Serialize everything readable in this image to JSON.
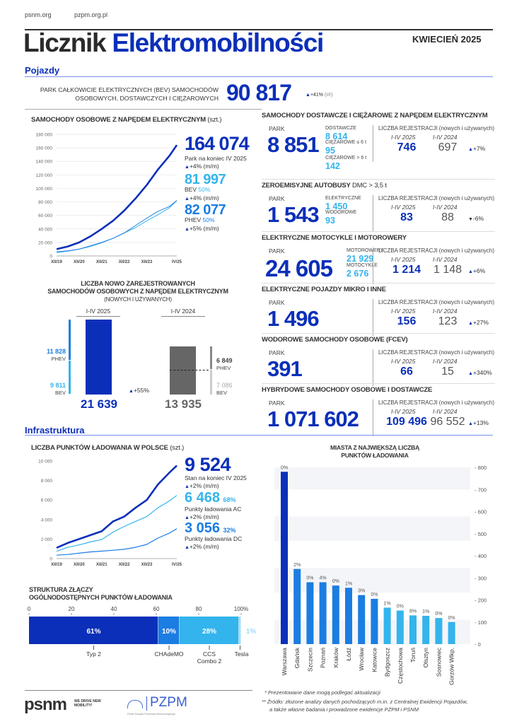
{
  "header": {
    "link1": "psnm.org",
    "link2": "pzpm.org.pl",
    "title_dark": "Licznik",
    "title_blue": "Elektromobilności",
    "date": "KWIECIEŃ 2025"
  },
  "sections": {
    "vehicles": "Pojazdy",
    "infrastructure": "Infrastruktura"
  },
  "bev_park": {
    "label1": "PARK CAŁKOWICIE ELEKTRYCZNYCH (BEV) SAMOCHODÓW",
    "label2": "OSOBOWYCH, DOSTAWCZYCH I CIĘŻAROWYCH",
    "value": "90 817",
    "change": "+41%",
    "change_unit": "(r/r)"
  },
  "cars_chart": {
    "title": "SAMOCHODY OSOBOWE Z NAPĘDEM ELEKTRYCZNYM",
    "unit": "(szt.)",
    "total": {
      "value": "164 074",
      "label": "Park na koniec IV 2025",
      "change": "+4% (m/m)"
    },
    "bev": {
      "value": "81 997",
      "label": "BEV",
      "share": "50%",
      "change": "+4% (m/m)"
    },
    "phev": {
      "value": "82 077",
      "label": "PHEV",
      "share": "50%",
      "change": "+5% (m/m)"
    }
  },
  "registrations": {
    "title1": "LICZBA NOWO ZAREJESTROWANYCH",
    "title2": "SAMOCHODÓW OSOBOWYCH Z NAPĘDEM ELEKTRYCZNYM",
    "title3": "(NOWYCH I UŻYWANYCH)",
    "y2025": {
      "label": "I-IV 2025",
      "total": "21 639",
      "phev": "11 828",
      "bev": "9 811"
    },
    "y2024": {
      "label": "I-IV 2024",
      "total": "13 935",
      "phev": "6 849",
      "bev": "7 086"
    },
    "phev_label": "PHEV",
    "bev_label": "BEV",
    "change": "+55%"
  },
  "categories": [
    {
      "title": "SAMOCHODY DOSTAWCZE I CIĘŻAROWE Z NAPĘDEM ELEKTRYCZNYM",
      "title_suffix": "",
      "park": "8 851",
      "subs": [
        {
          "label": "DOSTAWCZE",
          "value": "8 614"
        },
        {
          "label": "CIĘŻAROWE ≤ 6 t",
          "value": "95"
        },
        {
          "label": "CIĘŻAROWE > 6 t",
          "value": "142"
        }
      ],
      "r2025": "746",
      "r2024": "697",
      "change": "+7%",
      "dir": "up"
    },
    {
      "title": "ZEROEMISYJNE AUTOBUSY",
      "title_suffix": "DMC > 3,5 t",
      "park": "1 543",
      "subs": [
        {
          "label": "ELEKTRYCZNE",
          "value": "1 450"
        },
        {
          "label": "WODOROWE",
          "value": "93"
        }
      ],
      "r2025": "83",
      "r2024": "88",
      "change": "-6%",
      "dir": "down"
    },
    {
      "title": "ELEKTRYCZNE MOTOCYKLE I MOTOROWERY",
      "title_suffix": "",
      "park": "24 605",
      "subs": [
        {
          "label": "MOTOROWERY",
          "value": "21 929"
        },
        {
          "label": "MOTOCYKLE",
          "value": "2 676"
        }
      ],
      "r2025": "1 214",
      "r2024": "1 148",
      "change": "+6%",
      "dir": "up"
    },
    {
      "title": "ELEKTRYCZNE POJAZDY MIKRO I INNE",
      "title_suffix": "",
      "park": "1 496",
      "subs": [],
      "r2025": "156",
      "r2024": "123",
      "change": "+27%",
      "dir": "up"
    },
    {
      "title": "WODOROWE SAMOCHODY OSOBOWE (FCEV)",
      "title_suffix": "",
      "park": "391",
      "subs": [],
      "r2025": "66",
      "r2024": "15",
      "change": "+340%",
      "dir": "up"
    },
    {
      "title": "HYBRYDOWE SAMOCHODY OSOBOWE I DOSTAWCZE",
      "title_suffix": "",
      "park": "1 071 602",
      "subs": [],
      "r2025": "109 496",
      "r2024": "96 552",
      "change": "+13%",
      "dir": "up"
    }
  ],
  "category_labels": {
    "park": "PARK",
    "reg": "LICZBA REJESTRACJI (nowych i używanych)",
    "y2025": "I-IV 2025",
    "y2024": "I-IV 2024"
  },
  "charging_chart": {
    "title": "LICZBA PUNKTÓW ŁADOWANIA W POLSCE",
    "unit": "(szt.)",
    "total": {
      "value": "9 524",
      "label": "Stan na koniec IV 2025",
      "change": "+2% (m/m)"
    },
    "ac": {
      "value": "6 468",
      "share": "68%",
      "label": "Punkty ładowania AC",
      "change": "+2% (m/m)"
    },
    "dc": {
      "value": "3 056",
      "share": "32%",
      "label": "Punkty ładowania DC",
      "change": "+2% (m/m)"
    }
  },
  "cities_chart_title": [
    "MIASTA Z NAJWIĘKSZĄ LICZBĄ",
    "PUNKTÓW ŁADOWANIA"
  ],
  "connectors": {
    "title1": "STRUKTURA ZŁĄCZY",
    "title2": "OGÓLNODOSTĘPNYCH PUNKTÓW ŁADOWANIA"
  },
  "footer": {
    "note1": "* Prezentowane dane mogą podlegać aktualizacji",
    "note2": "** Źródło: złożone analizy danych pochodzących m.in. z Centralnej Ewidencji Pojazdów,",
    "note3": "a także własne badania i prowadzone ewidencje PZPM i PSNM",
    "psnm": "psnm",
    "psnm_tag": "WE DRIVE NEW MOBILITY!",
    "pzpm": "PZPM",
    "pzpm_sub": "Polski Związek Przemysłu Motoryzacyjnego"
  },
  "colors": {
    "dark_blue": "#0b2fb9",
    "mid_blue": "#1b7de2",
    "light_blue": "#33b4ec",
    "grey": "#666666"
  },
  "icons": {
    "increase": "triangle-up-icon",
    "decrease": "triangle-down-icon"
  },
  "chart_data": [
    {
      "type": "line",
      "title": "SAMOCHODY OSOBOWE Z NAPĘDEM ELEKTRYCZNYM (szt.)",
      "x_ticks": [
        "XII/19",
        "XII/20",
        "XII/21",
        "XII/22",
        "XII/23",
        "IV/25"
      ],
      "x": [
        "XII/19",
        "VI/20",
        "XII/20",
        "VI/21",
        "XII/21",
        "VI/22",
        "XII/22",
        "VI/23",
        "XII/23",
        "VI/24",
        "XII/24",
        "IV/25"
      ],
      "ylim": [
        0,
        180000
      ],
      "y_ticks": [
        "0",
        "20 000",
        "40 000",
        "60 000",
        "80 000",
        "100 000",
        "120 000",
        "140 000",
        "160 000",
        "180 000"
      ],
      "grid": true,
      "series": [
        {
          "name": "Park",
          "values": [
            10000,
            14000,
            20000,
            29000,
            40000,
            52000,
            67000,
            85000,
            105000,
            128000,
            148000,
            164074
          ]
        },
        {
          "name": "BEV",
          "values": [
            5000,
            7000,
            10000,
            14000,
            19500,
            26000,
            34000,
            42000,
            52000,
            61000,
            71000,
            81997
          ]
        },
        {
          "name": "PHEV",
          "values": [
            6000,
            7500,
            10000,
            15000,
            20000,
            26000,
            34000,
            45000,
            56000,
            66000,
            73000,
            82077
          ]
        }
      ]
    },
    {
      "type": "bar",
      "title": "LICZBA NOWO ZAREJESTROWANYCH SAMOCHODÓW OSOBOWYCH Z NAPĘDEM ELEKTRYCZNYM (NOWYCH I UŻYWANYCH)",
      "categories": [
        "I-IV 2025",
        "I-IV 2024"
      ],
      "series": [
        {
          "name": "PHEV",
          "values": [
            11828,
            6849
          ]
        },
        {
          "name": "BEV",
          "values": [
            9811,
            7086
          ]
        }
      ],
      "totals": [
        21639,
        13935
      ]
    },
    {
      "type": "line",
      "title": "LICZBA PUNKTÓW ŁADOWANIA W POLSCE (szt.)",
      "x_ticks": [
        "XII/19",
        "XII/20",
        "XII/21",
        "XII/22",
        "XII/23",
        "IV/25"
      ],
      "x": [
        "XII/19",
        "VI/20",
        "XII/20",
        "VI/21",
        "XII/21",
        "VI/22",
        "XII/22",
        "VI/23",
        "XII/23",
        "VI/24",
        "XII/24",
        "IV/25"
      ],
      "ylim": [
        0,
        10000
      ],
      "y_ticks": [
        "0",
        "2 000",
        "4 000",
        "6 000",
        "8 000",
        "10 000"
      ],
      "grid": false,
      "series": [
        {
          "name": "Stan",
          "values": [
            1100,
            1600,
            2000,
            2400,
            2800,
            3800,
            4300,
            5200,
            6000,
            7600,
            8800,
            9524
          ]
        },
        {
          "name": "AC",
          "values": [
            750,
            1150,
            1400,
            1700,
            1950,
            2700,
            3300,
            3800,
            4300,
            5200,
            5900,
            6468
          ]
        },
        {
          "name": "DC",
          "values": [
            350,
            420,
            550,
            680,
            760,
            850,
            950,
            1150,
            1450,
            2100,
            2600,
            3056
          ]
        }
      ]
    },
    {
      "type": "bar",
      "title": "MIASTA Z NAJWIĘKSZĄ LICZBĄ PUNKTÓW ŁADOWANIA",
      "ylim": [
        0,
        800
      ],
      "y_ticks": [
        "0",
        "100",
        "200",
        "300",
        "400",
        "500",
        "600",
        "700",
        "800"
      ],
      "y_axis": "right",
      "categories": [
        "Warszawa",
        "Gdańsk",
        "Szczecin",
        "Poznań",
        "Kraków",
        "Łódź",
        "Wrocław",
        "Katowice",
        "Bydgoszcz",
        "Częstochowa",
        "Toruń",
        "Olsztyn",
        "Sosnowiec",
        "Gorzów Wlkp."
      ],
      "values": [
        780,
        340,
        280,
        280,
        265,
        255,
        222,
        205,
        165,
        152,
        130,
        128,
        118,
        100
      ],
      "labels": [
        "0%",
        "2%",
        "0%",
        "4%",
        "0%",
        "1%",
        "3%",
        "0%",
        "1%",
        "0%",
        "8%",
        "1%",
        "0%",
        "0%"
      ]
    },
    {
      "type": "bar",
      "orientation": "horizontal-stacked",
      "title": "STRUKTURA ZŁĄCZY OGÓLNODOSTĘPNYCH PUNKTÓW ŁADOWANIA",
      "x_ticks": [
        "0",
        "20",
        "40",
        "60",
        "80",
        "100%"
      ],
      "categories": [
        "Typ 2",
        "CHAdeMO",
        "CCS Combo 2",
        "Tesla"
      ],
      "values": [
        61,
        10,
        28,
        1
      ],
      "labels": [
        "61%",
        "10%",
        "28%",
        "1%"
      ]
    }
  ]
}
